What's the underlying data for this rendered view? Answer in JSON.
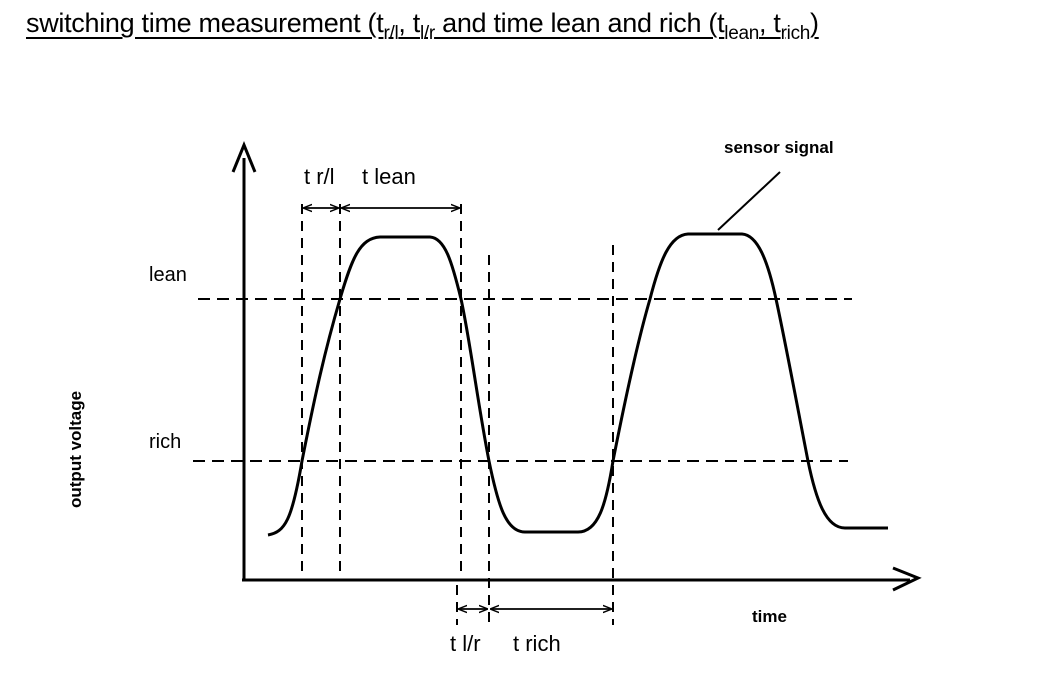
{
  "title": {
    "part1": "switching time measurement (t",
    "sub1": "r/l",
    "part2": ", t",
    "sub2": "l/r",
    "part3": " and time lean and rich (t",
    "sub3": "lean",
    "part4": ", t",
    "sub4": "rich",
    "part5": ")"
  },
  "diagram": {
    "y_axis_label": "output voltage",
    "x_axis_label": "time",
    "lean_label": "lean",
    "rich_label": "rich",
    "t_rl_label": "t r/l",
    "t_lean_label": "t lean",
    "t_lr_label": "t l/r",
    "t_rich_label": "t rich",
    "sensor_signal_label": "sensor signal"
  }
}
